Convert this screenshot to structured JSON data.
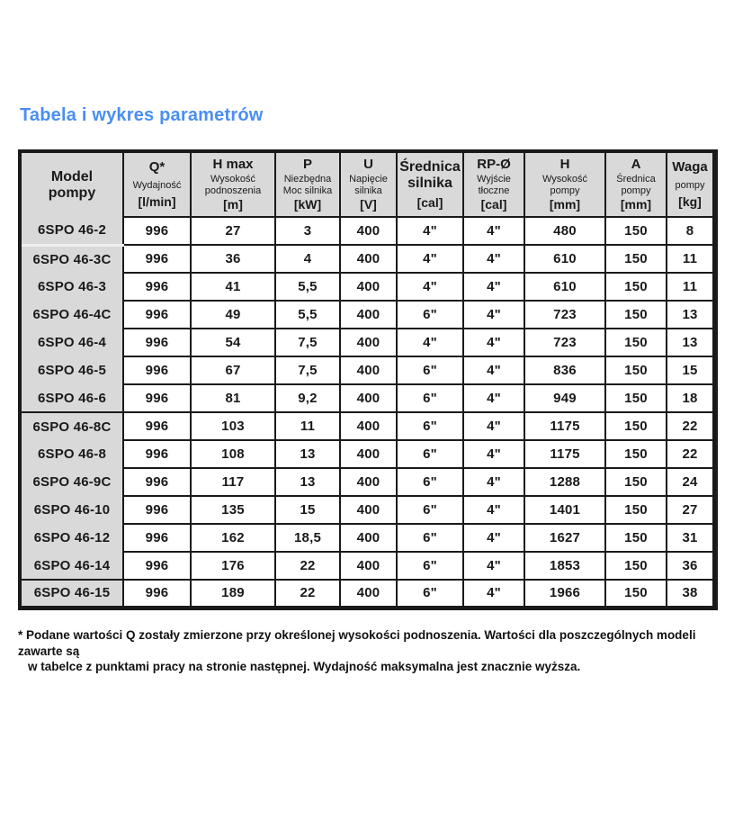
{
  "page": {
    "title": "Tabela i wykres parametrów",
    "footnote": {
      "line1": "* Podane wartości Q zostały zmierzone przy określonej wysokości podnoszenia. Wartości dla poszczególnych modeli zawarte są",
      "line2": "w tabelce z punktami pracy na stronie następnej. Wydajność maksymalna jest znacznie wyższa."
    }
  },
  "colors": {
    "accent_blue": "#4a8ef2",
    "header_gray": "#d9d9d9",
    "border_black": "#1a1a1a"
  },
  "table": {
    "columns": [
      {
        "key": "model",
        "label_lines": [
          "Model",
          "pompy"
        ],
        "desc_lines": [],
        "unit": null
      },
      {
        "key": "q",
        "label_lines": [
          "Q*"
        ],
        "desc_lines": [
          "Wydajność"
        ],
        "unit": "[l/min]"
      },
      {
        "key": "h-max",
        "label_lines": [
          "H max"
        ],
        "desc_lines": [
          "Wysokość",
          "podnoszenia"
        ],
        "unit": "[m]"
      },
      {
        "key": "p",
        "label_lines": [
          "P"
        ],
        "desc_lines": [
          "Niezbędna",
          "Moc silnika"
        ],
        "unit": "[kW]"
      },
      {
        "key": "u",
        "label_lines": [
          "U"
        ],
        "desc_lines": [
          "Napięcie",
          "silnika"
        ],
        "unit": "[V]"
      },
      {
        "key": "srednica-silnika",
        "label_lines": [
          "Średnica",
          "silnika"
        ],
        "desc_lines": [],
        "unit": "[cal]"
      },
      {
        "key": "rp",
        "label_lines": [
          "RP-Ø"
        ],
        "desc_lines": [
          "Wyjście",
          "tłoczne"
        ],
        "unit": "[cal]"
      },
      {
        "key": "h",
        "label_lines": [
          "H"
        ],
        "desc_lines": [
          "Wysokość",
          "pompy"
        ],
        "unit": "[mm]"
      },
      {
        "key": "a",
        "label_lines": [
          "A"
        ],
        "desc_lines": [
          "Średnica",
          "pompy"
        ],
        "unit": "[mm]"
      },
      {
        "key": "waga",
        "label_lines": [
          "Waga"
        ],
        "desc_lines": [
          "pompy"
        ],
        "unit": "[kg]"
      }
    ],
    "rows": [
      {
        "model": "6SPO 46-2",
        "values": [
          "996",
          "27",
          "3",
          "400",
          "4\"",
          "4\"",
          "480",
          "150",
          "8"
        ],
        "sep": "light"
      },
      {
        "model": "6SPO 46-3C",
        "values": [
          "996",
          "36",
          "4",
          "400",
          "4\"",
          "4\"",
          "610",
          "150",
          "11"
        ],
        "sep": "none"
      },
      {
        "model": "6SPO 46-3",
        "values": [
          "996",
          "41",
          "5,5",
          "400",
          "4\"",
          "4\"",
          "610",
          "150",
          "11"
        ],
        "sep": "none"
      },
      {
        "model": "6SPO 46-4C",
        "values": [
          "996",
          "49",
          "5,5",
          "400",
          "6\"",
          "4\"",
          "723",
          "150",
          "13"
        ],
        "sep": "none"
      },
      {
        "model": "6SPO 46-4",
        "values": [
          "996",
          "54",
          "7,5",
          "400",
          "4\"",
          "4\"",
          "723",
          "150",
          "13"
        ],
        "sep": "none"
      },
      {
        "model": "6SPO 46-5",
        "values": [
          "996",
          "67",
          "7,5",
          "400",
          "6\"",
          "4\"",
          "836",
          "150",
          "15"
        ],
        "sep": "none"
      },
      {
        "model": "6SPO 46-6",
        "values": [
          "996",
          "81",
          "9,2",
          "400",
          "6\"",
          "4\"",
          "949",
          "150",
          "18"
        ],
        "sep": "dark"
      },
      {
        "model": "6SPO 46-8C",
        "values": [
          "996",
          "103",
          "11",
          "400",
          "6\"",
          "4\"",
          "1175",
          "150",
          "22"
        ],
        "sep": "none"
      },
      {
        "model": "6SPO 46-8",
        "values": [
          "996",
          "108",
          "13",
          "400",
          "6\"",
          "4\"",
          "1175",
          "150",
          "22"
        ],
        "sep": "none"
      },
      {
        "model": "6SPO 46-9C",
        "values": [
          "996",
          "117",
          "13",
          "400",
          "6\"",
          "4\"",
          "1288",
          "150",
          "24"
        ],
        "sep": "none"
      },
      {
        "model": "6SPO 46-10",
        "values": [
          "996",
          "135",
          "15",
          "400",
          "6\"",
          "4\"",
          "1401",
          "150",
          "27"
        ],
        "sep": "none"
      },
      {
        "model": "6SPO 46-12",
        "values": [
          "996",
          "162",
          "18,5",
          "400",
          "6\"",
          "4\"",
          "1627",
          "150",
          "31"
        ],
        "sep": "none"
      },
      {
        "model": "6SPO 46-14",
        "values": [
          "996",
          "176",
          "22",
          "400",
          "6\"",
          "4\"",
          "1853",
          "150",
          "36"
        ],
        "sep": "dark"
      },
      {
        "model": "6SPO 46-15",
        "values": [
          "996",
          "189",
          "22",
          "400",
          "6\"",
          "4\"",
          "1966",
          "150",
          "38"
        ],
        "sep": "none"
      }
    ]
  }
}
